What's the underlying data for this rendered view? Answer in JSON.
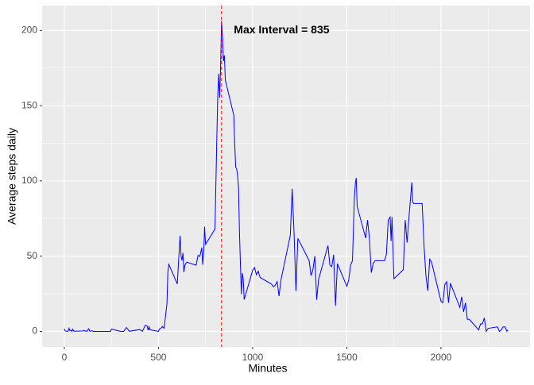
{
  "chart_data": {
    "type": "line",
    "x_label": "Minutes",
    "y_label": "Average steps daily",
    "x": [
      0,
      5,
      10,
      15,
      20,
      25,
      30,
      35,
      40,
      45,
      50,
      55,
      100,
      105,
      110,
      115,
      120,
      125,
      130,
      135,
      140,
      145,
      150,
      155,
      200,
      215,
      230,
      245,
      250,
      300,
      315,
      330,
      345,
      400,
      415,
      430,
      440,
      445,
      450,
      455,
      500,
      505,
      515,
      520,
      530,
      545,
      550,
      555,
      600,
      610,
      615,
      620,
      625,
      630,
      635,
      640,
      650,
      700,
      710,
      720,
      730,
      735,
      740,
      745,
      750,
      800,
      810,
      815,
      820,
      825,
      830,
      835,
      840,
      845,
      850,
      855,
      900,
      905,
      910,
      915,
      920,
      925,
      930,
      935,
      940,
      945,
      950,
      955,
      1000,
      1010,
      1020,
      1030,
      1035,
      1040,
      1100,
      1110,
      1120,
      1130,
      1140,
      1150,
      1200,
      1210,
      1220,
      1230,
      1240,
      1300,
      1310,
      1320,
      1330,
      1340,
      1350,
      1400,
      1410,
      1420,
      1430,
      1440,
      1450,
      1500,
      1510,
      1520,
      1530,
      1540,
      1545,
      1550,
      1555,
      1600,
      1610,
      1620,
      1630,
      1640,
      1650,
      1700,
      1710,
      1720,
      1730,
      1735,
      1740,
      1745,
      1750,
      1800,
      1810,
      1820,
      1830,
      1840,
      1845,
      1850,
      1855,
      1900,
      1910,
      1920,
      1930,
      1940,
      1950,
      2000,
      2010,
      2020,
      2030,
      2040,
      2050,
      2100,
      2110,
      2120,
      2130,
      2140,
      2150,
      2200,
      2210,
      2220,
      2230,
      2240,
      2250,
      2300,
      2310,
      2320,
      2330,
      2340,
      2350,
      2355
    ],
    "series": [
      {
        "name": "steps",
        "color": "#0000ff",
        "values": [
          1.7,
          0.3,
          0.1,
          0.2,
          0.1,
          2.1,
          0.5,
          0.9,
          0,
          1.5,
          0.3,
          0.1,
          0.3,
          0.7,
          0.2,
          0.3,
          0,
          1.1,
          1.8,
          0.2,
          0.2,
          0.4,
          0.3,
          0,
          0,
          0,
          0,
          0,
          1.5,
          0,
          0,
          2.6,
          0.1,
          1.2,
          0.1,
          4.1,
          3.5,
          0.8,
          3.1,
          1.1,
          0,
          1.6,
          2.2,
          3.3,
          2.1,
          18.3,
          39.5,
          44.5,
          31.5,
          53.8,
          63.5,
          50,
          47.1,
          52.2,
          39.3,
          44,
          46,
          44,
          50.5,
          49.9,
          55.7,
          44.3,
          52.3,
          69.5,
          57.8,
          68,
          129.4,
          157.5,
          171.2,
          155.4,
          177.3,
          206.2,
          195.9,
          179.6,
          183.4,
          167,
          143.5,
          124,
          109.1,
          108.1,
          103.7,
          95.9,
          66.2,
          45.2,
          24.8,
          38.8,
          35,
          21.1,
          40.6,
          42.4,
          37.7,
          40,
          37.5,
          35.8,
          31.4,
          29.7,
          30.7,
          33.1,
          23.5,
          33.9,
          63.9,
          94.8,
          65,
          26.9,
          61.8,
          47,
          37,
          41,
          50,
          21,
          34.5,
          57,
          44,
          43,
          51,
          17,
          45,
          30,
          34,
          44,
          47,
          88,
          98,
          102,
          83,
          62,
          74,
          62,
          39,
          45,
          47,
          47,
          51,
          74,
          76,
          60,
          76,
          56,
          35,
          41,
          74,
          59,
          76,
          91,
          99,
          86,
          85,
          85,
          57,
          37,
          27,
          48,
          46,
          20,
          19,
          31,
          33,
          19,
          32,
          16,
          23,
          13,
          19,
          8,
          8,
          1,
          5,
          5,
          9,
          0,
          2,
          3,
          0,
          1,
          3,
          3,
          0,
          1
        ]
      }
    ],
    "vline": {
      "x": 835,
      "color": "#ff0000"
    },
    "annotation": {
      "text": "Max Interval = 835",
      "x": 1154,
      "y": 200
    },
    "xlim": [
      -117.75,
      2472.75
    ],
    "ylim": [
      -10.3,
      216.5
    ],
    "xticks": [
      0,
      500,
      1000,
      1500,
      2000
    ],
    "yticks": [
      0,
      50,
      100,
      150,
      200
    ],
    "x_minor_ticks": [
      250,
      750,
      1250,
      1750,
      2250
    ],
    "y_minor_ticks": [
      25,
      75,
      125,
      175
    ],
    "grid": true
  }
}
